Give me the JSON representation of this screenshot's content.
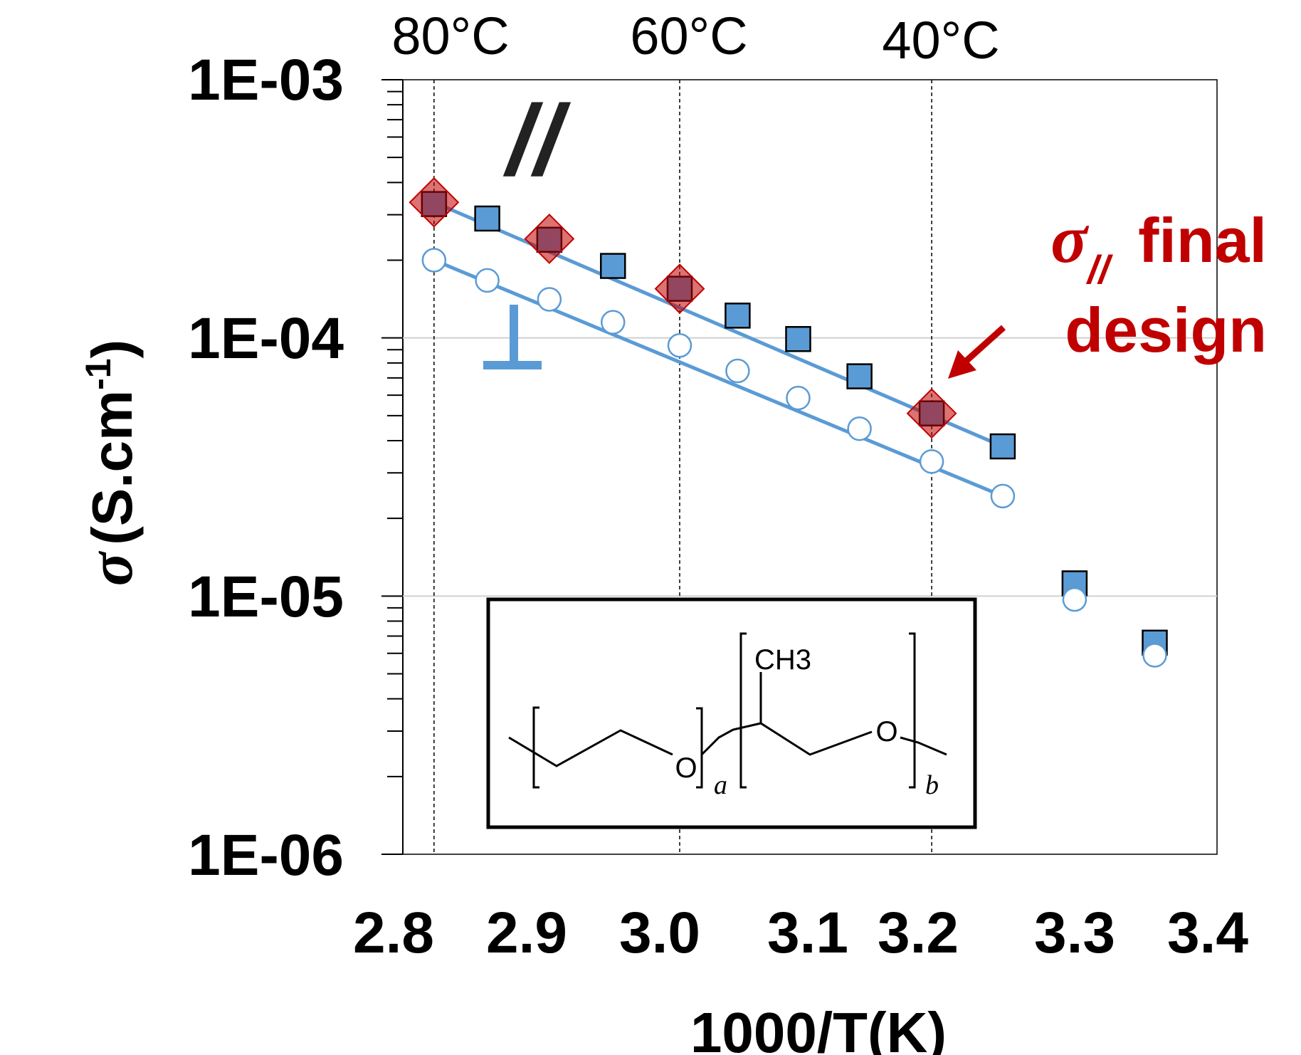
{
  "chart_data": {
    "type": "scatter",
    "y_scale": "log",
    "ylim": [
      1e-06,
      0.001
    ],
    "y_ticks": [
      "1E-03",
      "1E-04",
      "1E-05",
      "1E-06"
    ],
    "x_ticks": [
      "2.8",
      "2.9",
      "3.0",
      "3.1",
      "3.2",
      "3.3",
      "3.4"
    ],
    "xlabel": "1000/T(K)",
    "ylabel_symbol": "σ",
    "ylabel_units": "(S.cm",
    "ylabel_sup": "-1",
    "ylabel_close": ")",
    "temperature_marks": [
      {
        "label": "80°C",
        "x": 2.832
      },
      {
        "label": "60°C",
        "x": 3.0
      },
      {
        "label": "40°C",
        "x": 3.195
      }
    ],
    "parallel_symbol": "//",
    "perpendicular_symbol": "⊥",
    "annotation": {
      "line1_sigma": "σ",
      "line1_sub": "//",
      "line1_rest": "final",
      "line2": "design"
    },
    "inset": {
      "ch3": "CH3",
      "o": "O",
      "sub_a": "a",
      "sub_b": "b"
    },
    "series": [
      {
        "marker": "square",
        "color": "#5b9bd5",
        "x": [
          2.832,
          2.872,
          2.916,
          2.957,
          3.0,
          3.044,
          3.09,
          3.138,
          3.195,
          3.245,
          3.295,
          3.35
        ],
        "y": [
          0.00033,
          0.00029,
          0.00024,
          0.00019,
          0.000155,
          0.000122,
          9.9e-05,
          7.1e-05,
          5.1e-05,
          3.8e-05,
          1.12e-05,
          6.6e-06
        ]
      },
      {
        "marker": "circle",
        "color": "#ffffff",
        "x": [
          2.832,
          2.872,
          2.916,
          2.957,
          3.0,
          3.044,
          3.09,
          3.138,
          3.195,
          3.245,
          3.295,
          3.35
        ],
        "y": [
          0.0002,
          0.000167,
          0.000141,
          0.000115,
          9.35e-05,
          7.45e-05,
          5.85e-05,
          4.45e-05,
          3.32e-05,
          2.44e-05,
          9.7e-06,
          5.9e-06
        ]
      },
      {
        "marker": "diamond",
        "color": "#c00000",
        "x": [
          2.832,
          2.916,
          3.0,
          3.195
        ],
        "y": [
          0.000335,
          0.000242,
          0.000155,
          5.1e-05
        ]
      }
    ],
    "fit_lines": [
      {
        "color": "#5b9bd5",
        "x": [
          2.832,
          3.245
        ],
        "y": [
          0.000335,
          3.8e-05
        ]
      },
      {
        "color": "#5b9bd5",
        "x": [
          2.832,
          3.245
        ],
        "y": [
          0.0002,
          2.44e-05
        ]
      }
    ]
  }
}
